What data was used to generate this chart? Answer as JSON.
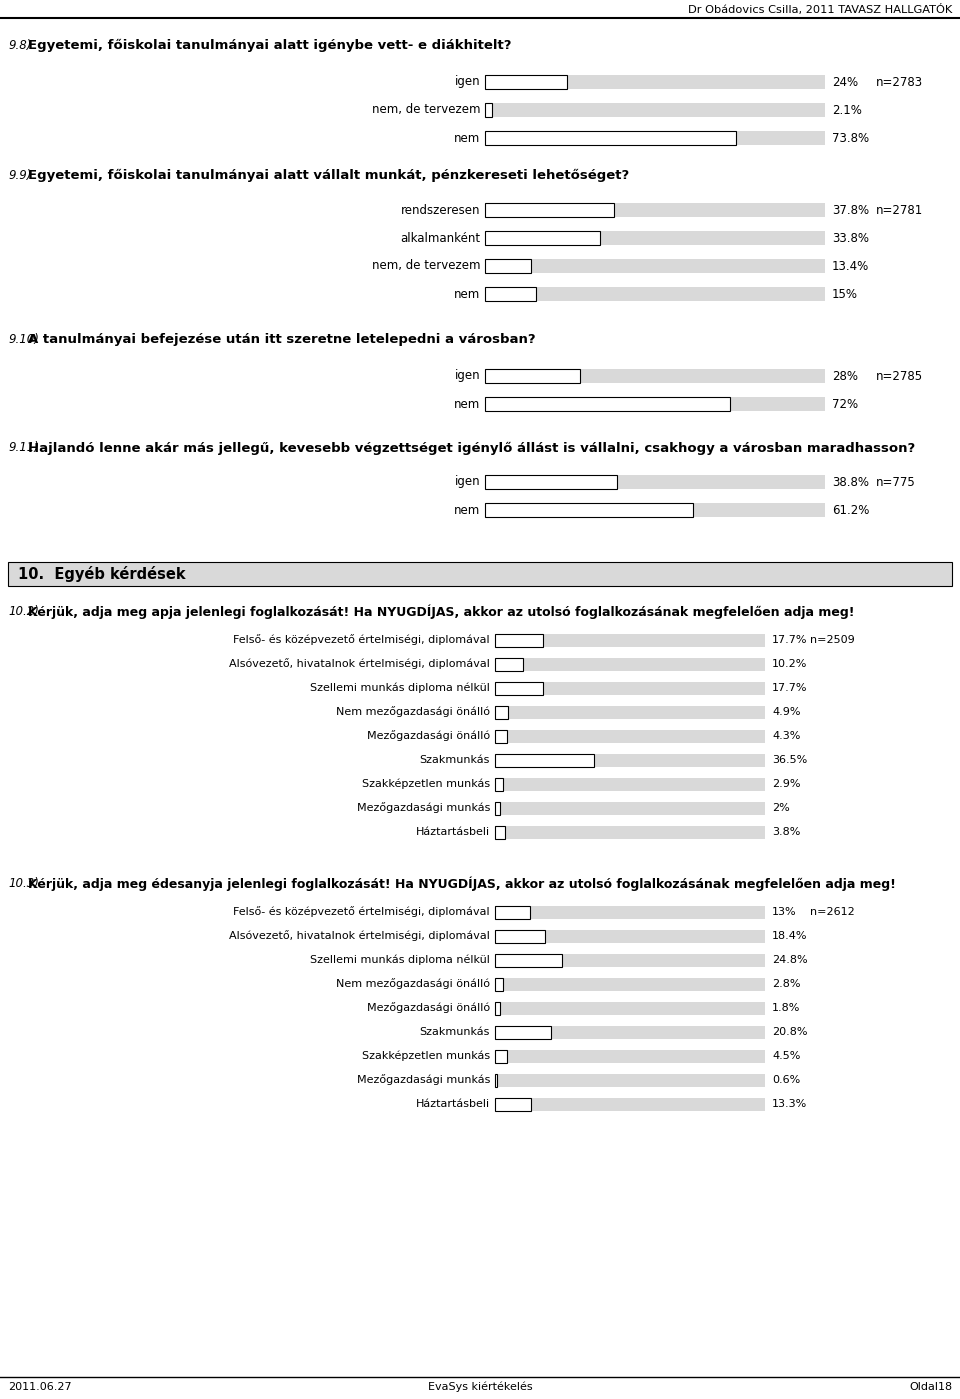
{
  "header": "Dr Obádovics Csilla, 2011 TAVASZ HALLGATÓK",
  "footer_left": "2011.06.27",
  "footer_center": "EvaSys kiértékelés",
  "footer_right": "Oldal18",
  "bg_color": "#ffffff",
  "bar_bg_color": "#d9d9d9",
  "bar_filled_color": "#ffffff",
  "bar_outline_color": "#000000",
  "q98_num": "9.8)",
  "q98_title": " Egyetemi, főiskolai tanulmányai alatt igénybe vett- e diákhitelt?",
  "q98_n": "n=2783",
  "q98_items": [
    {
      "label": "igen",
      "value": 24.0,
      "pct": "24%"
    },
    {
      "label": "nem, de tervezem",
      "value": 2.1,
      "pct": "2.1%"
    },
    {
      "label": "nem",
      "value": 73.8,
      "pct": "73.8%"
    }
  ],
  "q99_num": "9.9)",
  "q99_title": " Egyetemi, főiskolai tanulmányai alatt vállalt munkát, pénzkereseti lehetőséget?",
  "q99_n": "n=2781",
  "q99_items": [
    {
      "label": "rendszeresen",
      "value": 37.8,
      "pct": "37.8%"
    },
    {
      "label": "alkalmanként",
      "value": 33.8,
      "pct": "33.8%"
    },
    {
      "label": "nem, de tervezem",
      "value": 13.4,
      "pct": "13.4%"
    },
    {
      "label": "nem",
      "value": 15.0,
      "pct": "15%"
    }
  ],
  "q910_num": "9.10)",
  "q910_title": " A tanulmányai befejezése után itt szeretne letelepedni a városban?",
  "q910_n": "n=2785",
  "q910_items": [
    {
      "label": "igen",
      "value": 28.0,
      "pct": "28%"
    },
    {
      "label": "nem",
      "value": 72.0,
      "pct": "72%"
    }
  ],
  "q911_num": "9.11)",
  "q911_title": " Hajlandó lenne akár más jellegű, kevesebb végzettséget igénylő állást is vállalni, csakhogy a városban maradhasson?",
  "q911_n": "n=775",
  "q911_items": [
    {
      "label": "igen",
      "value": 38.8,
      "pct": "38.8%"
    },
    {
      "label": "nem",
      "value": 61.2,
      "pct": "61.2%"
    }
  ],
  "section10_title": "10.  Egyéb kérdések",
  "q102_num": "10.2)",
  "q102_title": " Kérjük, adja meg apja jelenlegi foglalkozását! Ha NYUGDÍJAS, akkor az utolsó foglalkozásának megfelelően adja meg!",
  "q102_n": "n=2509",
  "q102_items": [
    {
      "label": "Felső- és középvezető értelmiségi, diplomával",
      "value": 17.7,
      "pct": "17.7%"
    },
    {
      "label": "Alsóvezető, hivatalnok értelmiségi, diplomával",
      "value": 10.2,
      "pct": "10.2%"
    },
    {
      "label": "Szellemi munkás diploma nélkül",
      "value": 17.7,
      "pct": "17.7%"
    },
    {
      "label": "Nem mezőgazdasági önálló",
      "value": 4.9,
      "pct": "4.9%"
    },
    {
      "label": "Mezőgazdasági önálló",
      "value": 4.3,
      "pct": "4.3%"
    },
    {
      "label": "Szakmunkás",
      "value": 36.5,
      "pct": "36.5%"
    },
    {
      "label": "Szakképzetlen munkás",
      "value": 2.9,
      "pct": "2.9%"
    },
    {
      "label": "Mezőgazdasági munkás",
      "value": 2.0,
      "pct": "2%"
    },
    {
      "label": "Háztartásbeli",
      "value": 3.8,
      "pct": "3.8%"
    }
  ],
  "q103_num": "10.3)",
  "q103_title": " Kérjük, adja meg édesanyja jelenlegi foglalkozását! Ha NYUGDÍJAS, akkor az utolsó foglalkozásának megfelelően adja meg!",
  "q103_n": "n=2612",
  "q103_items": [
    {
      "label": "Felső- és középvezető értelmiségi, diplomával",
      "value": 13.0,
      "pct": "13%"
    },
    {
      "label": "Alsóvezető, hivatalnok értelmiségi, diplomával",
      "value": 18.4,
      "pct": "18.4%"
    },
    {
      "label": "Szellemi munkás diploma nélkül",
      "value": 24.8,
      "pct": "24.8%"
    },
    {
      "label": "Nem mezőgazdasági önálló",
      "value": 2.8,
      "pct": "2.8%"
    },
    {
      "label": "Mezőgazdasági önálló",
      "value": 1.8,
      "pct": "1.8%"
    },
    {
      "label": "Szakmunkás",
      "value": 20.8,
      "pct": "20.8%"
    },
    {
      "label": "Szakképzetlen munkás",
      "value": 4.5,
      "pct": "4.5%"
    },
    {
      "label": "Mezőgazdasági munkás",
      "value": 0.6,
      "pct": "0.6%"
    },
    {
      "label": "Háztartásbeli",
      "value": 13.3,
      "pct": "13.3%"
    }
  ]
}
